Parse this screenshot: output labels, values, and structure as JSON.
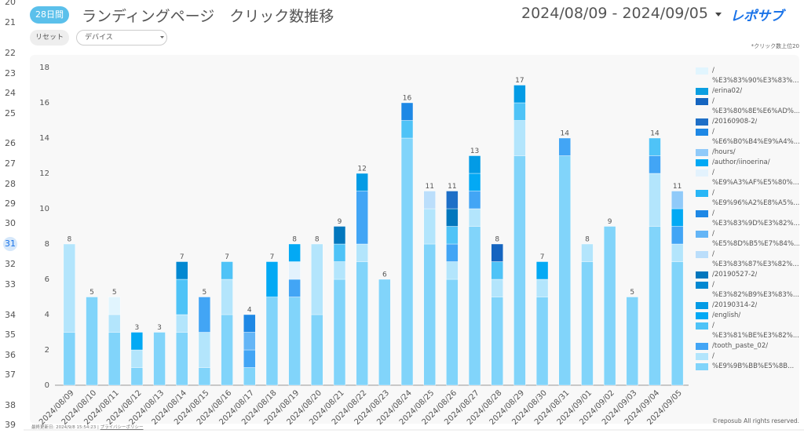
{
  "header": {
    "badge": "28日間",
    "title": "ランディングページ　クリック数推移",
    "date_range": "2024/08/09 - 2024/09/05",
    "logo": "レポサブ"
  },
  "filters": {
    "reset": "リセット",
    "device": "デバイス"
  },
  "note": "*クリック数上位20",
  "row_numbers": [
    20,
    21,
    22,
    23,
    24,
    25,
    26,
    27,
    28,
    29,
    30,
    31,
    32,
    33,
    34,
    35,
    36,
    37,
    38,
    39
  ],
  "selected_row": 31,
  "footer": {
    "updated": "最終更新日: 2024/9/8 15:54:23",
    "separator": "|",
    "privacy": "プライバシーポリシー",
    "copyright": "©reposub All rights reserved."
  },
  "chart_data": {
    "type": "stacked_bar",
    "categories": [
      "2024/08/09",
      "2024/08/10",
      "2024/08/11",
      "2024/08/12",
      "2024/08/13",
      "2024/08/14",
      "2024/08/15",
      "2024/08/16",
      "2024/08/17",
      "2024/08/18",
      "2024/08/19",
      "2024/08/20",
      "2024/08/21",
      "2024/08/22",
      "2024/08/23",
      "2024/08/24",
      "2024/08/25",
      "2024/08/26",
      "2024/08/27",
      "2024/08/28",
      "2024/08/29",
      "2024/08/30",
      "2024/08/31",
      "2024/09/01",
      "2024/09/02",
      "2024/09/03",
      "2024/09/04",
      "2024/09/05"
    ],
    "totals": [
      8,
      5,
      5,
      3,
      3,
      7,
      5,
      7,
      4,
      7,
      8,
      8,
      9,
      12,
      6,
      16,
      11,
      11,
      13,
      8,
      17,
      7,
      14,
      8,
      9,
      5,
      14,
      11
    ],
    "ylim": [
      0,
      18
    ],
    "yticks": [
      0,
      2,
      4,
      6,
      8,
      10,
      12,
      14,
      16,
      18
    ],
    "grid": false,
    "legend": "right",
    "series": [
      {
        "name": "/\n%E3%83%90%E3%83%...",
        "color": "#e1f5fe",
        "values": [
          0,
          0,
          1,
          0,
          0,
          0,
          0,
          0,
          0,
          0,
          0,
          0,
          0,
          0,
          0,
          0,
          0,
          0,
          0,
          0,
          0,
          0,
          0,
          0,
          0,
          0,
          0,
          0
        ]
      },
      {
        "name": "/erina02/",
        "color": "#0b9ee0",
        "values": [
          0,
          0,
          0,
          0,
          0,
          0,
          0,
          0,
          0,
          0,
          0,
          0,
          0,
          0,
          0,
          0,
          0,
          0,
          0,
          0,
          0,
          0,
          0,
          0,
          0,
          0,
          0,
          0
        ]
      },
      {
        "name": "/\n%E3%80%8E%E6%AD%...",
        "color": "#1565c0",
        "values": [
          0,
          0,
          0,
          0,
          0,
          0,
          0,
          0,
          0,
          0,
          0,
          0,
          0,
          0,
          0,
          0,
          0,
          0,
          0,
          1,
          0,
          0,
          0,
          0,
          0,
          0,
          0,
          0
        ]
      },
      {
        "name": "/20160908-2/",
        "color": "#1e6fc7",
        "values": [
          0,
          0,
          0,
          0,
          0,
          0,
          0,
          0,
          0,
          0,
          0,
          0,
          0,
          0,
          0,
          0,
          0,
          1,
          0,
          0,
          0,
          0,
          0,
          0,
          0,
          0,
          0,
          0
        ]
      },
      {
        "name": "/\n%E6%B0%B4%E9%A4%...",
        "color": "#1e88e5",
        "values": [
          0,
          0,
          0,
          0,
          0,
          0,
          0,
          0,
          0,
          0,
          0,
          0,
          0,
          0,
          0,
          0,
          0,
          0,
          0,
          0,
          0,
          0,
          0,
          0,
          0,
          0,
          0,
          0
        ]
      },
      {
        "name": "/hours/",
        "color": "#90caf9",
        "values": [
          0,
          0,
          0,
          0,
          0,
          0,
          0,
          0,
          0,
          0,
          0,
          0,
          0,
          0,
          0,
          0,
          0,
          0,
          0,
          0,
          0,
          0,
          0,
          0,
          0,
          0,
          0,
          1
        ]
      },
      {
        "name": "/author/iinoerina/",
        "color": "#03a9f4",
        "values": [
          0,
          0,
          0,
          0,
          0,
          0,
          0,
          0,
          0,
          0,
          1,
          0,
          0,
          0,
          0,
          0,
          0,
          0,
          0,
          0,
          0,
          0,
          0,
          0,
          0,
          0,
          0,
          1
        ]
      },
      {
        "name": "/\n%E9%A3%AF%E5%80%...",
        "color": "#e3f2fd",
        "values": [
          0,
          0,
          0,
          0,
          0,
          0,
          0,
          0,
          0,
          0,
          1,
          0,
          0,
          0,
          0,
          0,
          0,
          0,
          0,
          0,
          0,
          0,
          0,
          0,
          0,
          0,
          0,
          0
        ]
      },
      {
        "name": "/\n%E9%96%A2%E8%A5%...",
        "color": "#29b6f6",
        "values": [
          0,
          0,
          0,
          0,
          0,
          0,
          0,
          0,
          0,
          0,
          0,
          0,
          0,
          0,
          0,
          0,
          0,
          0,
          0,
          0,
          0,
          0,
          0,
          0,
          0,
          0,
          0,
          0
        ]
      },
      {
        "name": "/\n%E3%83%9D%E3%82%...",
        "color": "#1e88e5",
        "values": [
          0,
          0,
          0,
          0,
          0,
          0,
          0,
          0,
          1,
          0,
          0,
          0,
          0,
          0,
          0,
          1,
          0,
          0,
          0,
          0,
          0,
          0,
          0,
          0,
          0,
          0,
          0,
          0
        ]
      },
      {
        "name": "/\n%E5%8D%B5%E7%84%...",
        "color": "#64b5f6",
        "values": [
          0,
          0,
          0,
          0,
          0,
          0,
          0,
          0,
          1,
          0,
          0,
          0,
          0,
          0,
          0,
          0,
          0,
          0,
          0,
          0,
          0,
          0,
          0,
          0,
          0,
          0,
          0,
          0
        ]
      },
      {
        "name": "/\n%E3%83%87%E3%82%...",
        "color": "#bbdefb",
        "values": [
          0,
          0,
          0,
          0,
          0,
          0,
          0,
          0,
          0,
          0,
          0,
          0,
          0,
          0,
          0,
          0,
          1,
          0,
          0,
          0,
          0,
          0,
          0,
          0,
          0,
          0,
          0,
          0
        ]
      },
      {
        "name": "/20190527-2/",
        "color": "#0277bd",
        "values": [
          0,
          0,
          0,
          0,
          0,
          0,
          0,
          0,
          0,
          0,
          0,
          0,
          1,
          0,
          0,
          0,
          0,
          1,
          0,
          0,
          0,
          0,
          0,
          0,
          0,
          0,
          0,
          0
        ]
      },
      {
        "name": "/\n%E3%82%B9%E3%83%...",
        "color": "#0288d1",
        "values": [
          0,
          0,
          0,
          0,
          0,
          1,
          0,
          0,
          0,
          0,
          0,
          0,
          0,
          0,
          0,
          0,
          0,
          0,
          0,
          0,
          0,
          0,
          0,
          0,
          0,
          0,
          0,
          0
        ]
      },
      {
        "name": "/20190314-2/",
        "color": "#039be5",
        "values": [
          0,
          0,
          0,
          0,
          0,
          0,
          0,
          0,
          0,
          0,
          0,
          0,
          0,
          1,
          0,
          0,
          0,
          0,
          1,
          0,
          1,
          0,
          0,
          0,
          0,
          0,
          0,
          0
        ]
      },
      {
        "name": "/english/",
        "color": "#03a9f4",
        "values": [
          0,
          0,
          0,
          1,
          0,
          0,
          0,
          0,
          0,
          2,
          0,
          0,
          0,
          0,
          0,
          0,
          0,
          0,
          1,
          0,
          0,
          1,
          0,
          0,
          0,
          0,
          0,
          0
        ]
      },
      {
        "name": "/\n%E3%81%BE%E3%82%...",
        "color": "#4fc3f7",
        "values": [
          0,
          0,
          0,
          0,
          0,
          2,
          0,
          1,
          0,
          0,
          0,
          0,
          1,
          0,
          0,
          1,
          0,
          1,
          0,
          1,
          1,
          0,
          0,
          0,
          0,
          0,
          1,
          0
        ]
      },
      {
        "name": "/tooth_paste_02/",
        "color": "#42a5f5",
        "values": [
          0,
          0,
          0,
          0,
          0,
          0,
          2,
          0,
          1,
          0,
          1,
          0,
          0,
          3,
          0,
          0,
          0,
          1,
          1,
          0,
          0,
          0,
          1,
          0,
          0,
          0,
          1,
          1
        ]
      },
      {
        "name": "/",
        "color": "#b3e5fc",
        "values": [
          5,
          0,
          1,
          1,
          0,
          1,
          2,
          2,
          0,
          0,
          0,
          4,
          1,
          1,
          0,
          0,
          2,
          1,
          1,
          1,
          2,
          1,
          0,
          1,
          0,
          0,
          3,
          1
        ]
      },
      {
        "name": "%E9%9B%BB%E5%8B...",
        "color": "#81d4fa",
        "values": [
          3,
          5,
          3,
          1,
          3,
          3,
          1,
          4,
          1,
          5,
          5,
          4,
          6,
          7,
          6,
          14,
          8,
          6,
          9,
          5,
          13,
          5,
          13,
          7,
          9,
          5,
          9,
          7
        ]
      }
    ]
  }
}
